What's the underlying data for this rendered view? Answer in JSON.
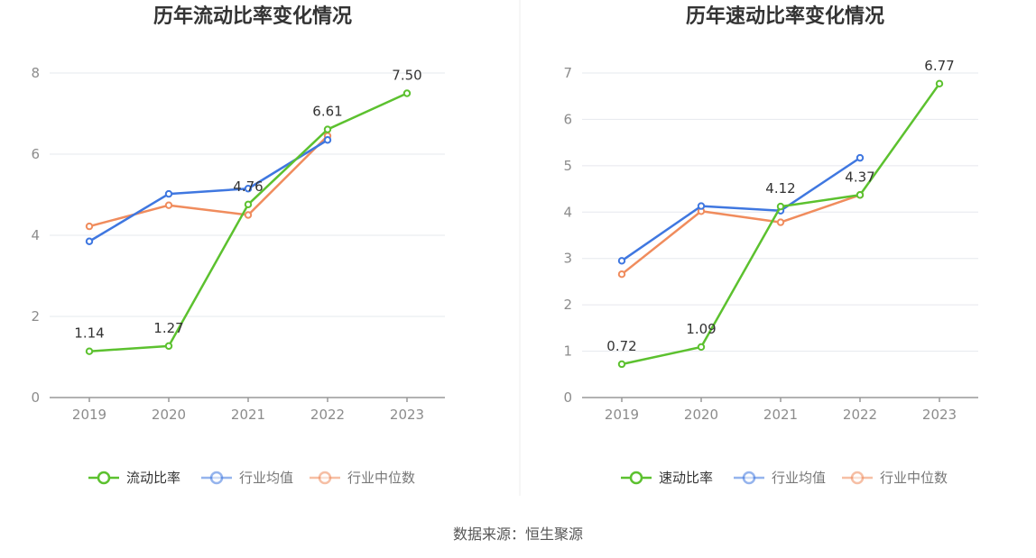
{
  "chart_data": [
    {
      "type": "line",
      "title": "历年流动比率变化情况",
      "categories": [
        "2019",
        "2020",
        "2021",
        "2022",
        "2023"
      ],
      "ylim": [
        0,
        8
      ],
      "yticks": [
        0,
        2,
        4,
        6,
        8
      ],
      "grid": true,
      "legend_position": "bottom",
      "series": [
        {
          "name": "流动比率",
          "color": "#5cc12f",
          "values": [
            1.14,
            1.27,
            4.76,
            6.61,
            7.5
          ],
          "labels": [
            "1.14",
            "1.27",
            "4.76",
            "6.61",
            "7.50"
          ]
        },
        {
          "name": "行业均值",
          "color": "#3f77e0",
          "values": [
            3.85,
            5.02,
            5.15,
            6.35,
            null
          ]
        },
        {
          "name": "行业中位数",
          "color": "#f08c5d",
          "values": [
            4.22,
            4.74,
            4.5,
            6.45,
            null
          ]
        }
      ]
    },
    {
      "type": "line",
      "title": "历年速动比率变化情况",
      "categories": [
        "2019",
        "2020",
        "2021",
        "2022",
        "2023"
      ],
      "ylim": [
        0,
        7
      ],
      "yticks": [
        0,
        1,
        2,
        3,
        4,
        5,
        6,
        7
      ],
      "grid": true,
      "legend_position": "bottom",
      "series": [
        {
          "name": "速动比率",
          "color": "#5cc12f",
          "values": [
            0.72,
            1.09,
            4.12,
            4.37,
            6.77
          ],
          "labels": [
            "0.72",
            "1.09",
            "4.12",
            "4.37",
            "6.77"
          ]
        },
        {
          "name": "行业均值",
          "color": "#3f77e0",
          "values": [
            2.95,
            4.13,
            4.03,
            5.17,
            null
          ]
        },
        {
          "name": "行业中位数",
          "color": "#f08c5d",
          "values": [
            2.66,
            4.02,
            3.78,
            4.37,
            null
          ]
        }
      ]
    }
  ],
  "footer": {
    "source": "数据来源：恒生聚源"
  }
}
